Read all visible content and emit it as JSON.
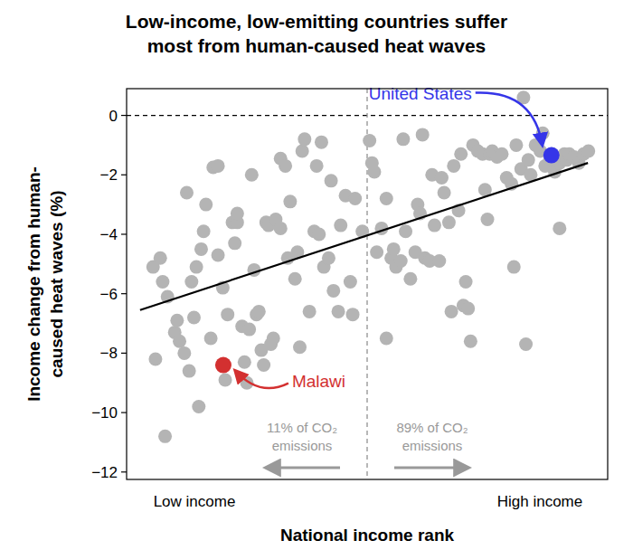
{
  "chart_data": {
    "type": "scatter",
    "title": [
      "Low-income, low-emitting countries suffer",
      "most from human-caused heat waves"
    ],
    "x_label": "National income rank",
    "y_label": [
      "Income change from human-",
      "caused heat waves (%)"
    ],
    "x_range_labels": [
      "Low income",
      "High income"
    ],
    "xlim": [
      0,
      100
    ],
    "ylim": [
      -12.25,
      0.9
    ],
    "yticks": [
      {
        "value": 0,
        "label": "0"
      },
      {
        "value": -2,
        "label": "−2"
      },
      {
        "value": -4,
        "label": "−4"
      },
      {
        "value": -6,
        "label": "−6"
      },
      {
        "value": -8,
        "label": "−8"
      },
      {
        "value": -10,
        "label": "−10"
      },
      {
        "value": -12,
        "label": "−12"
      }
    ],
    "tick_labels": "y",
    "grid": false,
    "reference_lines": {
      "y": 0,
      "x": 50
    },
    "divider_annotations": [
      [
        "11% of CO₂",
        "emissions"
      ],
      [
        "89% of CO₂",
        "emissions"
      ]
    ],
    "series": [
      {
        "type": "scatter",
        "color": "#b4b4b4",
        "marker": "circle",
        "x": [
          5.5,
          7,
          7.5,
          8.5,
          6,
          8,
          10,
          10.5,
          11,
          12,
          12.5,
          13,
          13.5,
          14,
          15,
          14.5,
          15.5,
          16,
          16.5,
          17.5,
          18,
          19,
          19,
          20,
          20.5,
          21,
          22,
          22.5,
          23,
          23,
          24,
          24.5,
          25,
          25.5,
          26,
          26.5,
          27,
          27.5,
          28,
          28.5,
          29,
          29.5,
          30,
          30.5,
          31,
          32,
          32,
          33,
          33.5,
          34,
          35,
          35.5,
          36,
          36.5,
          37,
          38,
          39,
          39.5,
          40,
          40.5,
          41,
          42,
          42.5,
          43,
          44,
          44.5,
          45.5,
          46.5,
          47,
          47.5,
          49,
          50.5,
          51,
          51.5,
          52,
          53,
          54,
          54,
          55,
          55.5,
          56,
          57,
          57.5,
          58,
          59,
          60,
          60.5,
          61,
          61.5,
          62,
          63,
          63.5,
          64,
          65,
          65.5,
          66,
          67,
          67.5,
          68,
          69,
          69.5,
          70,
          70.5,
          71,
          71.5,
          72,
          73,
          74,
          74.5,
          75,
          75.5,
          76,
          77,
          78,
          79,
          80,
          80.5,
          81,
          82,
          82.5,
          83,
          83.5,
          84,
          85,
          86,
          86.5,
          87,
          88,
          88.5,
          89,
          90,
          90,
          91,
          91.5,
          92,
          93,
          94,
          95,
          96
        ],
        "values": [
          -5.1,
          -4.8,
          -5.6,
          -6.1,
          -8.2,
          -10.8,
          -7.3,
          -6.9,
          -7.6,
          -8.0,
          -2.6,
          -8.6,
          -5.6,
          -6.8,
          -9.8,
          -5.1,
          -4.5,
          -3.9,
          -3.0,
          -7.5,
          -1.75,
          -1.7,
          -4.7,
          -5.8,
          -8.9,
          -6.7,
          -3.6,
          -4.3,
          -3.6,
          -3.3,
          -7.1,
          -8.3,
          -9.0,
          -7.2,
          -2.0,
          -5.2,
          -6.7,
          -6.6,
          -7.9,
          -8.4,
          -3.6,
          -3.7,
          -7.7,
          -7.5,
          -3.5,
          -3.8,
          -1.45,
          -1.7,
          -4.8,
          -2.9,
          -5.5,
          -4.6,
          -7.8,
          -1.2,
          -0.8,
          -6.6,
          -3.9,
          -1.7,
          -4.0,
          -0.9,
          -5.1,
          -4.8,
          -2.2,
          -5.9,
          -6.6,
          -3.7,
          -2.7,
          -5.6,
          -6.7,
          -2.8,
          -3.9,
          -0.85,
          -1.6,
          -1.9,
          -4.6,
          -3.8,
          -7.5,
          -2.8,
          -4.8,
          -4.5,
          -5.1,
          -4.9,
          -0.8,
          -3.9,
          -5.5,
          -4.6,
          -3.0,
          -3.3,
          -0.65,
          -4.8,
          -4.9,
          -2.0,
          -3.7,
          -4.9,
          -2.1,
          -2.6,
          -3.6,
          -6.6,
          -1.7,
          -3.2,
          -1.3,
          -6.4,
          -5.6,
          -6.5,
          -7.6,
          -1.0,
          -1.2,
          -1.3,
          -2.5,
          -3.5,
          -1.3,
          -1.2,
          -1.4,
          -1.3,
          -2.1,
          -2.3,
          -5.1,
          -1.0,
          -1.8,
          0.6,
          -7.7,
          -1.5,
          -2.0,
          -1.0,
          -1.2,
          -0.6,
          -1.7,
          -1.5,
          -1.3,
          -1.9,
          -3.8,
          -1.6,
          -1.3,
          -1.5,
          -1.3,
          -1.4,
          -1.6,
          -1.3,
          -1.2
        ]
      },
      {
        "type": "line",
        "color": "#000000",
        "line_style": "solid",
        "x": [
          2.8,
          95.9
        ],
        "values": [
          -6.55,
          -1.6
        ]
      },
      {
        "type": "scatter",
        "name": "United States",
        "color": "#3535e8",
        "marker": "circle",
        "x": [
          88.3
        ],
        "values": [
          -1.34
        ]
      },
      {
        "type": "scatter",
        "name": "Malawi",
        "color": "#d33030",
        "marker": "circle",
        "x": [
          20.1
        ],
        "values": [
          -8.4
        ]
      }
    ]
  }
}
